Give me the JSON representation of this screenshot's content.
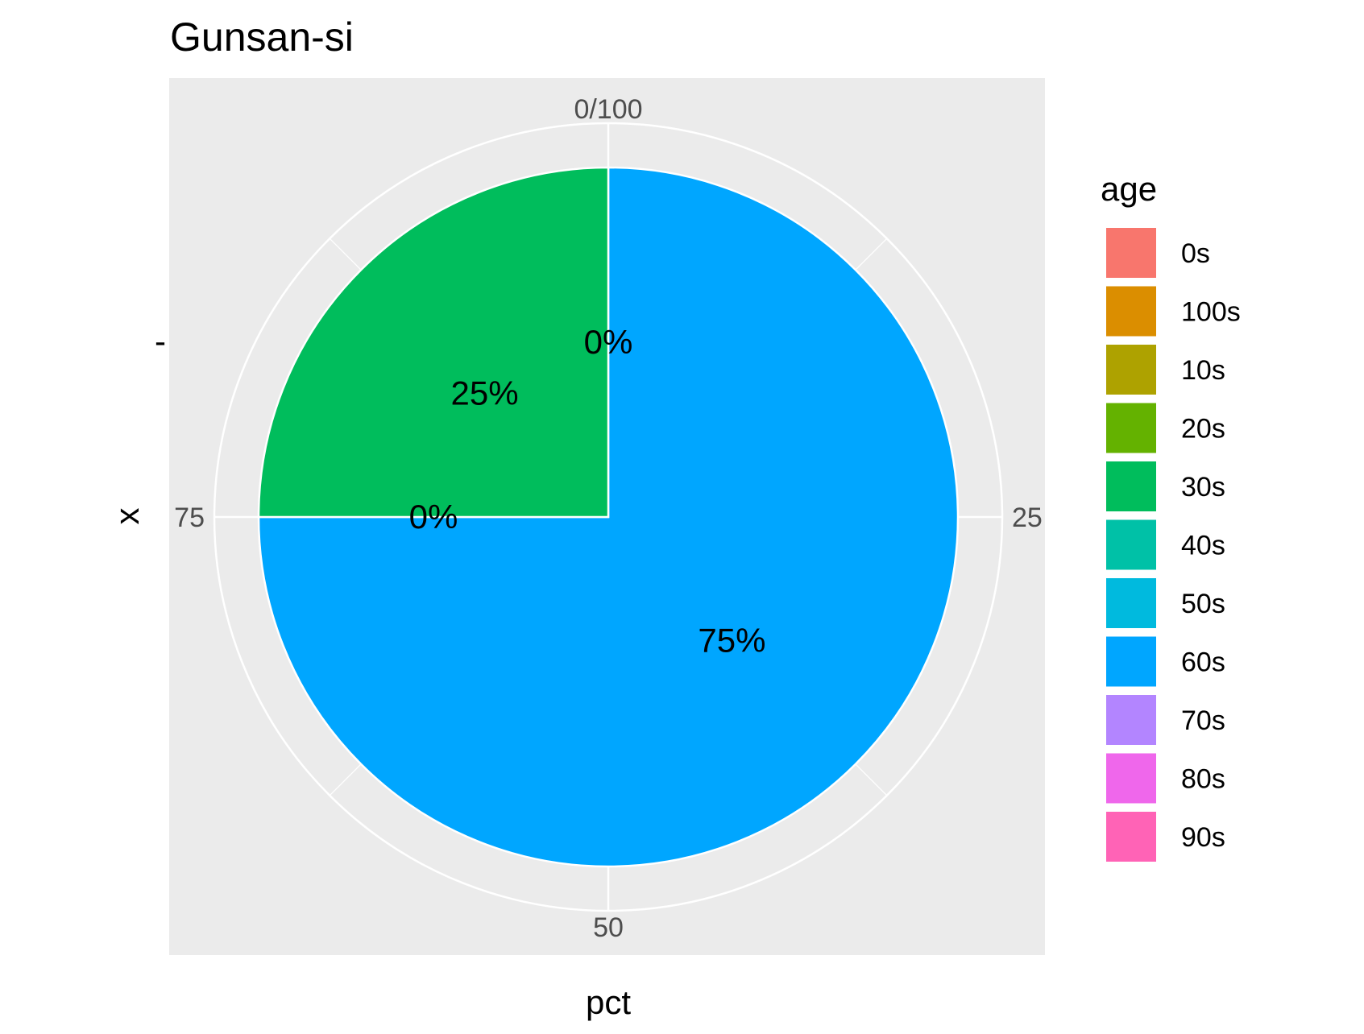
{
  "chart_data": {
    "type": "pie",
    "title": "Gunsan-si",
    "xlabel": "pct",
    "ylabel": "x",
    "y_tick_labels": [
      "-"
    ],
    "theta_ticks": [
      "0/100",
      "25",
      "50",
      "75"
    ],
    "legend_title": "age",
    "legend_position": "right",
    "grid": true,
    "panel_background": "#ebebeb",
    "categories": [
      "0s",
      "100s",
      "10s",
      "20s",
      "30s",
      "40s",
      "50s",
      "60s",
      "70s",
      "80s",
      "90s"
    ],
    "colors": [
      "#F8766D",
      "#DB8E00",
      "#AEA200",
      "#64B200",
      "#00BD5C",
      "#00C1A7",
      "#00BADE",
      "#00A6FF",
      "#B385FF",
      "#EF67EB",
      "#FF63B6"
    ],
    "slices": [
      {
        "category": "60s",
        "value": 75,
        "label": "75%"
      },
      {
        "category": "30s",
        "value": 25,
        "label": "25%"
      }
    ],
    "extra_labels": [
      {
        "label": "0%",
        "value": 0
      },
      {
        "label": "0%",
        "value": 75
      }
    ]
  }
}
